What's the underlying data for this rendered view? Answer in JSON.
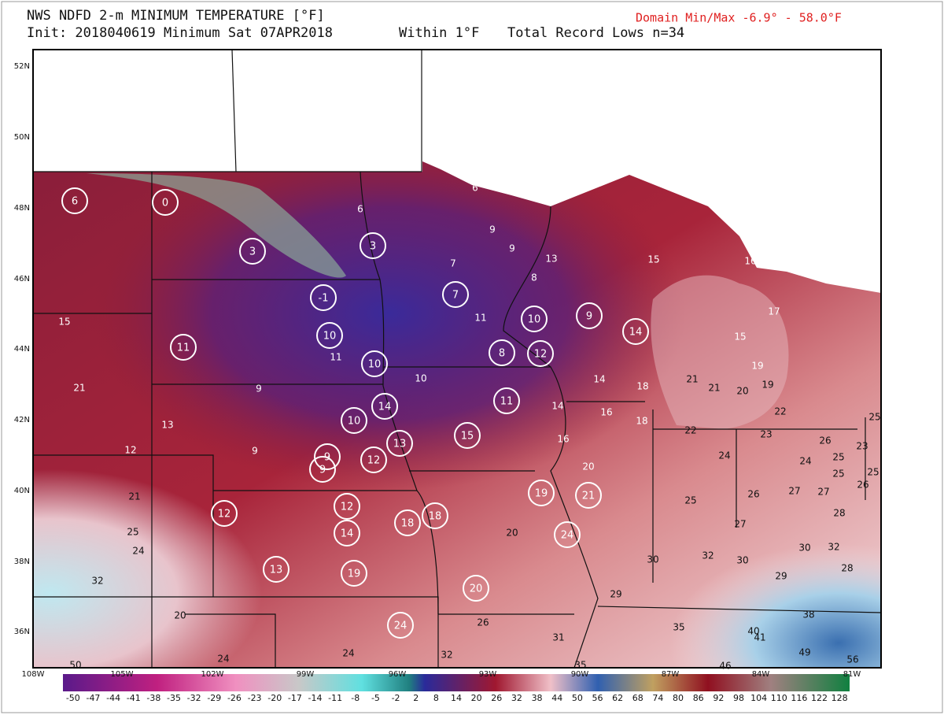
{
  "header": {
    "title": "NWS NDFD 2-m MINIMUM TEMPERATURE [°F]",
    "init": "Init: 2018040619 Minimum Sat 07APR2018",
    "within": "Within 1°F",
    "record": "Total Record Lows n=34",
    "domain": "Domain Min/Max -6.9° - 58.0°F"
  },
  "map": {
    "lat_labels": [
      "52N",
      "50N",
      "48N",
      "46N",
      "44N",
      "42N",
      "40N",
      "38N",
      "36N"
    ],
    "lon_labels": [
      "108W",
      "105W",
      "102W",
      "99W",
      "96W",
      "93W",
      "90W",
      "87W",
      "84W",
      "81W"
    ],
    "record_lows": [
      6,
      0,
      3,
      3,
      -1,
      10,
      11,
      10,
      7,
      10,
      9,
      14,
      8,
      12,
      11,
      14,
      10,
      13,
      15,
      9,
      9,
      12,
      12,
      12,
      14,
      18,
      18,
      19,
      21,
      24,
      13,
      19,
      20,
      24
    ],
    "forecast_values": [
      6,
      6,
      9,
      9,
      7,
      13,
      15,
      16,
      8,
      11,
      17,
      15,
      11,
      10,
      19,
      14,
      21,
      21,
      20,
      19,
      18,
      9,
      15,
      21,
      13,
      14,
      16,
      18,
      22,
      25,
      12,
      9,
      16,
      22,
      23,
      26,
      23,
      24,
      24,
      25,
      25,
      26,
      25,
      20,
      21,
      25,
      26,
      27,
      27,
      28,
      25,
      24,
      20,
      27,
      30,
      32,
      30,
      32,
      30,
      28,
      32,
      29,
      29,
      20,
      26,
      38,
      35,
      40,
      41,
      31,
      24,
      24,
      32,
      49,
      56,
      35,
      46,
      50
    ]
  },
  "colorbar": {
    "labels": [
      -50,
      -47,
      -44,
      -41,
      -38,
      -35,
      -32,
      -29,
      -26,
      -23,
      -20,
      -17,
      -14,
      -11,
      -8,
      -5,
      -2,
      2,
      8,
      14,
      20,
      26,
      32,
      38,
      44,
      50,
      56,
      62,
      68,
      74,
      80,
      86,
      92,
      98,
      104,
      110,
      116,
      122,
      128
    ]
  }
}
